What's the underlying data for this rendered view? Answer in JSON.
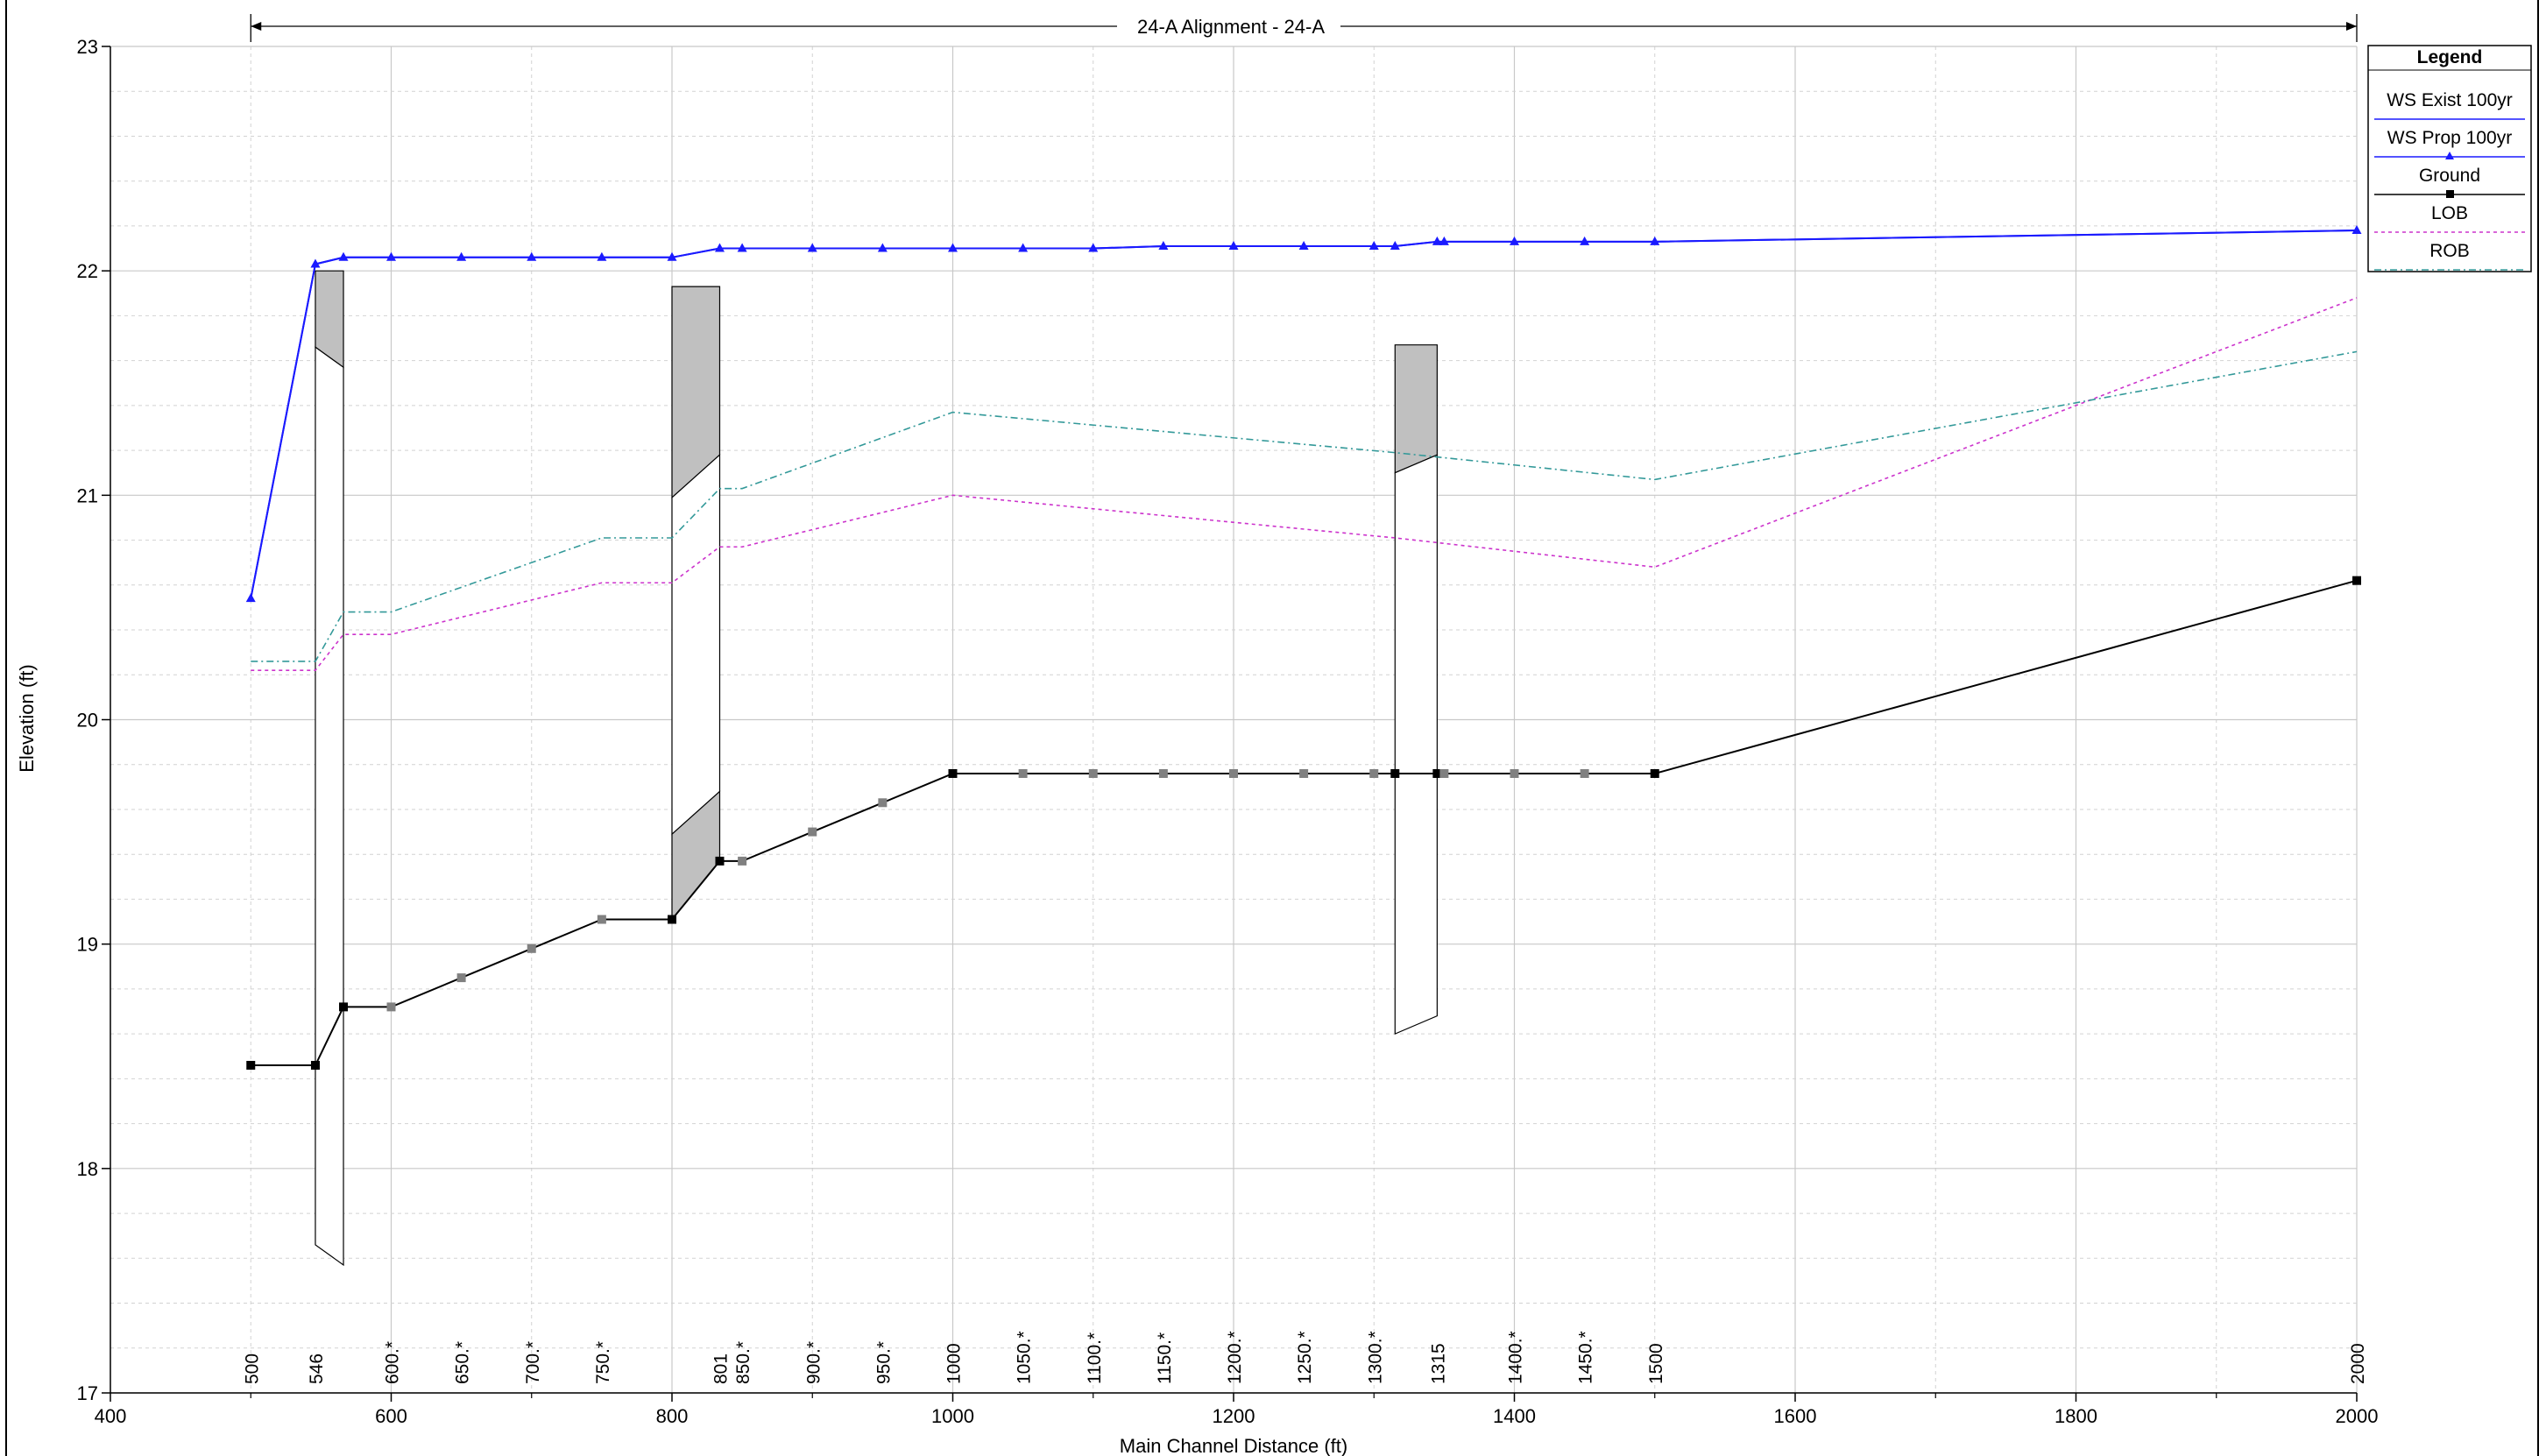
{
  "chart_data": {
    "type": "line",
    "reach_label": "24-A Alignment - 24-A",
    "xlabel": "Main Channel Distance (ft)",
    "ylabel": "Elevation (ft)",
    "xlim": [
      400,
      2000
    ],
    "ylim": [
      17,
      23
    ],
    "x_ticks": [
      400,
      600,
      800,
      1000,
      1200,
      1400,
      1600,
      1800,
      2000
    ],
    "y_ticks": [
      17,
      18,
      19,
      20,
      21,
      22,
      23
    ],
    "grid": true,
    "legend": {
      "title": "Legend",
      "placement": "top-right",
      "entries": [
        "WS  Exist 100yr",
        "WS  Prop 100yr",
        "Ground",
        "LOB",
        "ROB"
      ]
    },
    "series": [
      {
        "name": "WS  Exist 100yr",
        "color": "#1a1aff",
        "style": "solid",
        "marker": "none",
        "x": [
          500,
          546,
          566,
          600,
          650,
          700,
          750,
          800,
          834,
          850,
          900,
          950,
          1000,
          1050,
          1100,
          1150,
          1200,
          1250,
          1300,
          1315,
          1345,
          1350,
          1400,
          1450,
          1500,
          2000
        ],
        "y": [
          20.54,
          22.03,
          22.06,
          22.06,
          22.06,
          22.06,
          22.06,
          22.06,
          22.1,
          22.1,
          22.1,
          22.1,
          22.1,
          22.1,
          22.1,
          22.11,
          22.11,
          22.11,
          22.11,
          22.11,
          22.13,
          22.13,
          22.13,
          22.13,
          22.13,
          22.18
        ]
      },
      {
        "name": "WS  Prop 100yr",
        "color": "#1a1aff",
        "style": "solid",
        "marker": "triangle",
        "x": [
          500,
          546,
          566,
          600,
          650,
          700,
          750,
          800,
          834,
          850,
          900,
          950,
          1000,
          1050,
          1100,
          1150,
          1200,
          1250,
          1300,
          1315,
          1345,
          1350,
          1400,
          1450,
          1500,
          2000
        ],
        "y": [
          20.54,
          22.03,
          22.06,
          22.06,
          22.06,
          22.06,
          22.06,
          22.06,
          22.1,
          22.1,
          22.1,
          22.1,
          22.1,
          22.1,
          22.1,
          22.11,
          22.11,
          22.11,
          22.11,
          22.11,
          22.13,
          22.13,
          22.13,
          22.13,
          22.13,
          22.18
        ]
      },
      {
        "name": "Ground",
        "color": "#000000",
        "style": "solid",
        "marker": "square",
        "x": [
          500,
          546,
          566,
          600,
          650,
          700,
          750,
          800,
          834,
          850,
          900,
          950,
          1000,
          1050,
          1100,
          1150,
          1200,
          1250,
          1300,
          1315,
          1345,
          1350,
          1400,
          1450,
          1500,
          2000
        ],
        "y": [
          18.46,
          18.46,
          18.72,
          18.72,
          18.85,
          18.98,
          19.11,
          19.11,
          19.37,
          19.37,
          19.5,
          19.63,
          19.76,
          19.76,
          19.76,
          19.76,
          19.76,
          19.76,
          19.76,
          19.76,
          19.76,
          19.76,
          19.76,
          19.76,
          19.76,
          20.62
        ]
      },
      {
        "name": "LOB",
        "color": "#cc33cc",
        "style": "dashed",
        "marker": "none",
        "x": [
          500,
          546,
          566,
          600,
          750,
          800,
          834,
          850,
          1000,
          1315,
          1500,
          2000
        ],
        "y": [
          20.22,
          20.22,
          20.38,
          20.38,
          20.61,
          20.61,
          20.77,
          20.77,
          21.0,
          20.81,
          20.68,
          21.88
        ]
      },
      {
        "name": "ROB",
        "color": "#339999",
        "style": "dashdot",
        "marker": "none",
        "x": [
          500,
          546,
          566,
          600,
          750,
          800,
          834,
          850,
          1000,
          1315,
          1500,
          2000
        ],
        "y": [
          20.26,
          20.26,
          20.48,
          20.48,
          20.81,
          20.81,
          21.03,
          21.03,
          21.37,
          21.19,
          21.07,
          21.64
        ]
      }
    ],
    "structures": [
      {
        "name": "culvert-546",
        "x_us": 546,
        "x_ds": 566,
        "deck_top_us": 22.0,
        "deck_top_ds": 22.0,
        "deck_bot_us": 21.66,
        "deck_bot_ds": 21.57,
        "invert_us": 17.66,
        "invert_ds": 17.57,
        "type": "deck-only"
      },
      {
        "name": "bridge-801",
        "x_us": 800,
        "x_ds": 834,
        "deck_top_us": 21.93,
        "deck_top_ds": 21.93,
        "deck_bot_us": 20.99,
        "deck_bot_ds": 21.18,
        "invert_us": 19.49,
        "invert_ds": 19.68,
        "floor_us": 19.11,
        "floor_ds": 19.37,
        "type": "deck-and-floor"
      },
      {
        "name": "culvert-1315",
        "x_us": 1315,
        "x_ds": 1345,
        "deck_top_us": 21.67,
        "deck_top_ds": 21.67,
        "deck_bot_us": 21.1,
        "deck_bot_ds": 21.18,
        "invert_us": 18.6,
        "invert_ds": 18.68,
        "type": "deck-only"
      }
    ],
    "river_stations": [
      {
        "label": "500",
        "x": 500
      },
      {
        "label": "546",
        "x": 546
      },
      {
        "label": "600.*",
        "x": 600
      },
      {
        "label": "650.*",
        "x": 650
      },
      {
        "label": "700.*",
        "x": 700
      },
      {
        "label": "750.*",
        "x": 750
      },
      {
        "label": "801",
        "x": 834
      },
      {
        "label": "850.*",
        "x": 850
      },
      {
        "label": "900.*",
        "x": 900
      },
      {
        "label": "950.*",
        "x": 950
      },
      {
        "label": "1000",
        "x": 1000
      },
      {
        "label": "1050.*",
        "x": 1050
      },
      {
        "label": "1100.*",
        "x": 1100
      },
      {
        "label": "1150.*",
        "x": 1150
      },
      {
        "label": "1200.*",
        "x": 1200
      },
      {
        "label": "1250.*",
        "x": 1250
      },
      {
        "label": "1300.*",
        "x": 1300
      },
      {
        "label": "1315",
        "x": 1345
      },
      {
        "label": "1400.*",
        "x": 1400
      },
      {
        "label": "1450.*",
        "x": 1450
      },
      {
        "label": "1500",
        "x": 1500
      },
      {
        "label": "2000",
        "x": 2000
      }
    ]
  }
}
